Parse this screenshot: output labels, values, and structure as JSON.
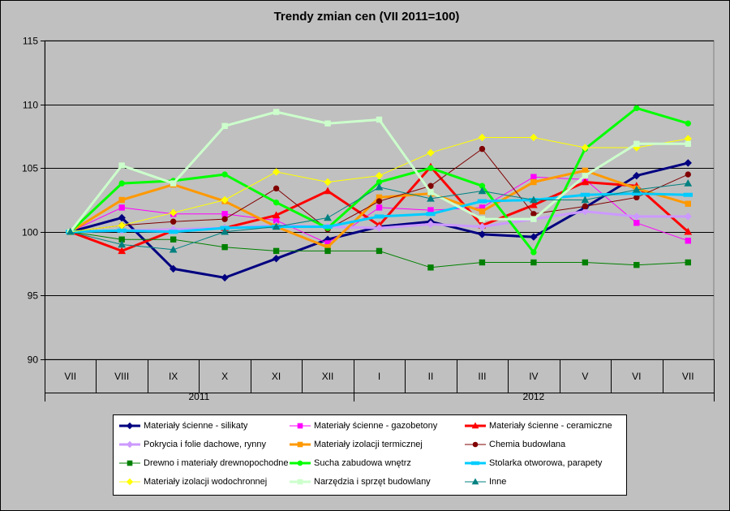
{
  "chart_data": {
    "type": "line",
    "title": "Trendy zmian cen (VII 2011=100)",
    "categories": [
      "VII",
      "VIII",
      "IX",
      "X",
      "XI",
      "XII",
      "I",
      "II",
      "III",
      "IV",
      "V",
      "VI",
      "VII"
    ],
    "year_labels": [
      {
        "label": "2011",
        "from": 0,
        "to": 5
      },
      {
        "label": "2012",
        "from": 6,
        "to": 12
      }
    ],
    "ylim": [
      90,
      115
    ],
    "yticks": [
      90,
      95,
      100,
      105,
      110,
      115
    ],
    "grid": true,
    "legend_position": "bottom",
    "series": [
      {
        "name": "Materiały ścienne - silikaty",
        "color": "#000080",
        "marker": "diamond",
        "width": 3,
        "values": [
          100,
          101.1,
          97.1,
          96.4,
          97.9,
          99.4,
          100.4,
          100.8,
          99.8,
          99.6,
          101.9,
          104.4,
          105.4
        ]
      },
      {
        "name": "Materiały ścienne - gazobetony",
        "color": "#ff00ff",
        "marker": "square",
        "width": 1,
        "values": [
          100,
          101.9,
          101.4,
          101.4,
          100.9,
          99.1,
          101.9,
          101.7,
          101.9,
          104.3,
          104.1,
          100.7,
          99.3
        ]
      },
      {
        "name": "Materiały ścienne - ceramiczne",
        "color": "#ff0000",
        "marker": "triangle",
        "width": 3,
        "values": [
          100,
          98.5,
          100.1,
          100.3,
          101.3,
          103.2,
          100.5,
          105.1,
          100.5,
          102.1,
          103.9,
          103.6,
          100.0
        ]
      },
      {
        "name": "Pokrycia i folie dachowe, rynny",
        "color": "#cc99ff",
        "marker": "diamond",
        "width": 3,
        "values": [
          100,
          100.1,
          100.2,
          100.3,
          100.5,
          100.4,
          100.3,
          100.6,
          100.4,
          101.0,
          101.6,
          101.2,
          101.2
        ]
      },
      {
        "name": "Materiały izolacji termicznej",
        "color": "#ff9900",
        "marker": "square",
        "width": 3,
        "values": [
          100,
          102.5,
          103.7,
          102.4,
          100.4,
          98.8,
          102.7,
          103.0,
          101.6,
          103.9,
          104.8,
          103.4,
          102.2
        ]
      },
      {
        "name": "Chemia budowlana",
        "color": "#800000",
        "marker": "circle",
        "width": 1,
        "values": [
          100,
          100.5,
          100.8,
          101.0,
          103.4,
          100.2,
          102.4,
          103.6,
          106.5,
          101.4,
          102.0,
          102.7,
          104.5
        ]
      },
      {
        "name": "Drewno i materiały drewnopochodne",
        "color": "#008000",
        "marker": "square",
        "width": 1,
        "values": [
          100,
          99.4,
          99.4,
          98.8,
          98.5,
          98.5,
          98.5,
          97.2,
          97.6,
          97.6,
          97.6,
          97.4,
          97.6
        ]
      },
      {
        "name": "Sucha zabudowa wnętrz",
        "color": "#00ff00",
        "marker": "circle",
        "width": 3,
        "values": [
          100,
          103.8,
          104.0,
          104.5,
          102.3,
          100.3,
          103.9,
          105.0,
          103.6,
          98.4,
          106.5,
          109.7,
          108.5
        ]
      },
      {
        "name": "Stolarka otworowa, parapety",
        "color": "#00ccff",
        "marker": "dash",
        "width": 3,
        "values": [
          100,
          100.1,
          100.0,
          100.3,
          100.4,
          100.4,
          101.2,
          101.4,
          102.4,
          102.5,
          102.9,
          103.0,
          102.9
        ]
      },
      {
        "name": "Materiały izolacji wodochronnej",
        "color": "#ffff00",
        "marker": "diamond",
        "width": 1,
        "values": [
          100,
          100.5,
          101.5,
          102.5,
          104.7,
          103.9,
          104.4,
          106.2,
          107.4,
          107.4,
          106.6,
          106.6,
          107.3
        ]
      },
      {
        "name": "Narzędzia i sprzęt budowlany",
        "color": "#ccffcc",
        "marker": "square",
        "width": 3,
        "values": [
          100,
          105.2,
          103.8,
          108.3,
          109.4,
          108.5,
          108.8,
          103.1,
          101.0,
          101.0,
          104.4,
          106.9,
          106.9
        ]
      },
      {
        "name": "Inne",
        "color": "#008080",
        "marker": "triangle",
        "width": 1,
        "values": [
          100,
          99.0,
          98.6,
          100.0,
          100.4,
          101.1,
          103.5,
          102.6,
          103.2,
          102.5,
          102.5,
          103.3,
          103.8
        ]
      }
    ]
  }
}
